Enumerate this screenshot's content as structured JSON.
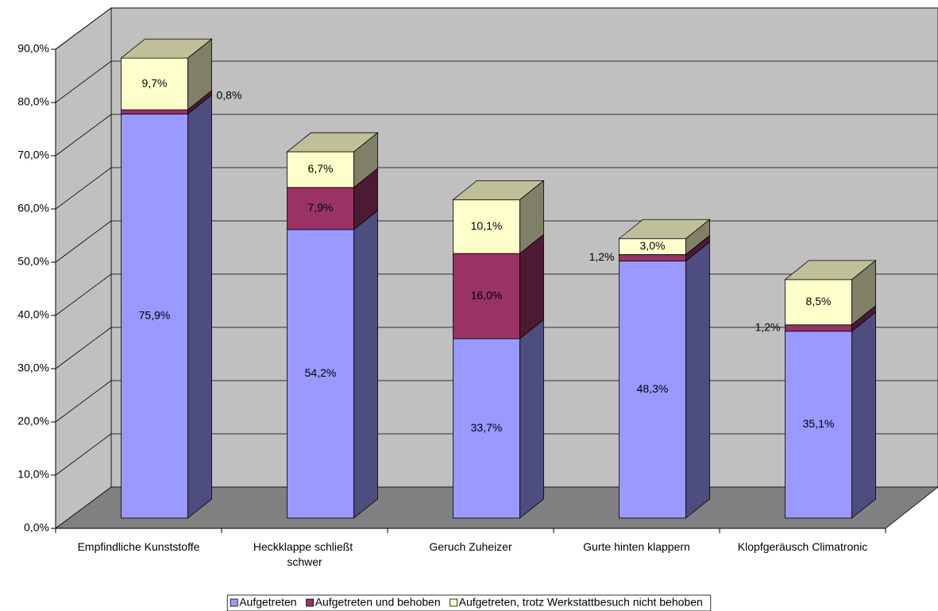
{
  "chart_data": {
    "type": "bar3d-stacked",
    "categories": [
      "Empfindliche Kunststoffe",
      "Heckklappe schließt schwer",
      "Geruch Zuheizer",
      "Gurte hinten klappern",
      "Klopfgeräusch Climatronic"
    ],
    "series": [
      {
        "name": "Aufgetreten",
        "color": "#9999ff",
        "values": [
          75.9,
          54.2,
          33.7,
          48.3,
          35.1
        ],
        "value_labels": [
          "75,9%",
          "54,2%",
          "33,7%",
          "48,3%",
          "35,1%"
        ]
      },
      {
        "name": "Aufgetreten und behoben",
        "color": "#993366",
        "values": [
          0.8,
          7.9,
          16.0,
          1.2,
          1.2
        ],
        "value_labels": [
          "0,8%",
          "7,9%",
          "16,0%",
          "1,2%",
          "1,2%"
        ]
      },
      {
        "name": "Aufgetreten, trotz Werkstattbesuch nicht behoben",
        "color": "#ffffcc",
        "values": [
          9.7,
          6.7,
          10.1,
          3.0,
          8.5
        ],
        "value_labels": [
          "9,7%",
          "6,7%",
          "10,1%",
          "3,0%",
          "8,5%"
        ]
      }
    ],
    "ylim": [
      0,
      90
    ],
    "yticks": [
      {
        "value": 0,
        "label": "0,0%"
      },
      {
        "value": 10,
        "label": "10,0%"
      },
      {
        "value": 20,
        "label": "20,0%"
      },
      {
        "value": 30,
        "label": "30,0%"
      },
      {
        "value": 40,
        "label": "40,0%"
      },
      {
        "value": 50,
        "label": "50,0%"
      },
      {
        "value": 60,
        "label": "60,0%"
      },
      {
        "value": 70,
        "label": "70,0%"
      },
      {
        "value": 80,
        "label": "80,0%"
      },
      {
        "value": 90,
        "label": "90,0%"
      }
    ],
    "grid": true,
    "legend": "bottom"
  }
}
